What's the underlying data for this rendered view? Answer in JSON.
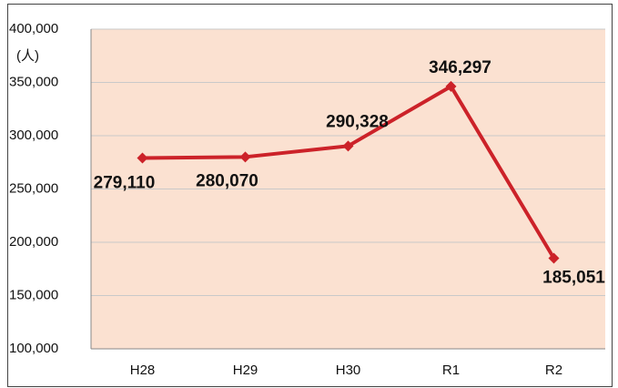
{
  "chart_data": {
    "type": "line",
    "unit_label": "(人)",
    "categories": [
      "H28",
      "H29",
      "H30",
      "R1",
      "R2"
    ],
    "series": [
      {
        "name": null,
        "color": "#cc2229",
        "values": [
          279110,
          280070,
          290328,
          346297,
          185051
        ],
        "value_labels": [
          "279,110",
          "280,070",
          "290,328",
          "346,297",
          "185,051"
        ]
      }
    ],
    "ylim": [
      100000,
      400000
    ],
    "yticks": [
      {
        "value": 100000,
        "label": "100,000"
      },
      {
        "value": 150000,
        "label": "150,000"
      },
      {
        "value": 200000,
        "label": "200,000"
      },
      {
        "value": 250000,
        "label": "250,000"
      },
      {
        "value": 300000,
        "label": "300,000"
      },
      {
        "value": 350000,
        "label": "350,000"
      },
      {
        "value": 400000,
        "label": "400,000"
      }
    ],
    "grid": true,
    "plot_background": "#fbe1d1"
  }
}
